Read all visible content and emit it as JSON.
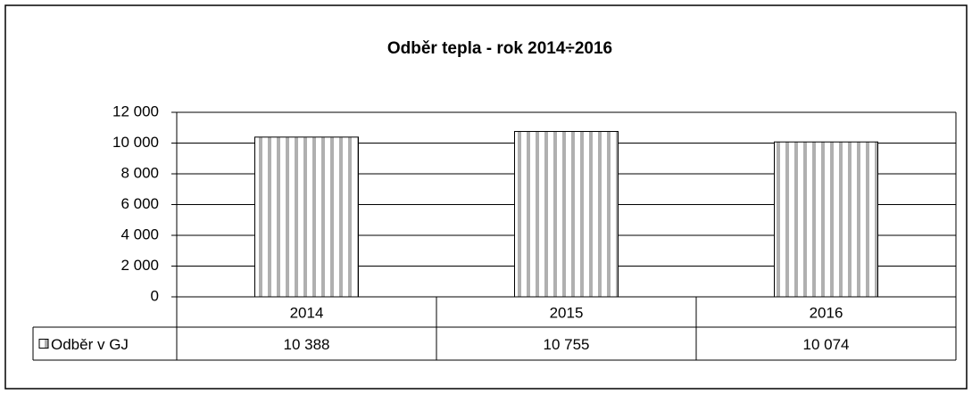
{
  "chart_data": {
    "type": "bar",
    "title": "Odběr tepla  - rok 2014÷2016",
    "categories": [
      "2014",
      "2015",
      "2016"
    ],
    "series": [
      {
        "name": "Odběr v GJ",
        "color": "#b0b0b0",
        "values": [
          10388,
          10755,
          10074
        ],
        "value_labels": [
          "10 388",
          "10 755",
          "10 074"
        ]
      }
    ],
    "ylim": [
      0,
      12000
    ],
    "yticks": [
      0,
      {
        "value": 2000,
        "label": "2 000"
      },
      {
        "value": 4000,
        "label": "4 000"
      },
      {
        "value": 6000,
        "label": "6 000"
      },
      {
        "value": 8000,
        "label": "8 000"
      },
      {
        "value": 10000,
        "label": "10 000"
      },
      {
        "value": 12000,
        "label": "12 000"
      }
    ],
    "grid": true
  }
}
